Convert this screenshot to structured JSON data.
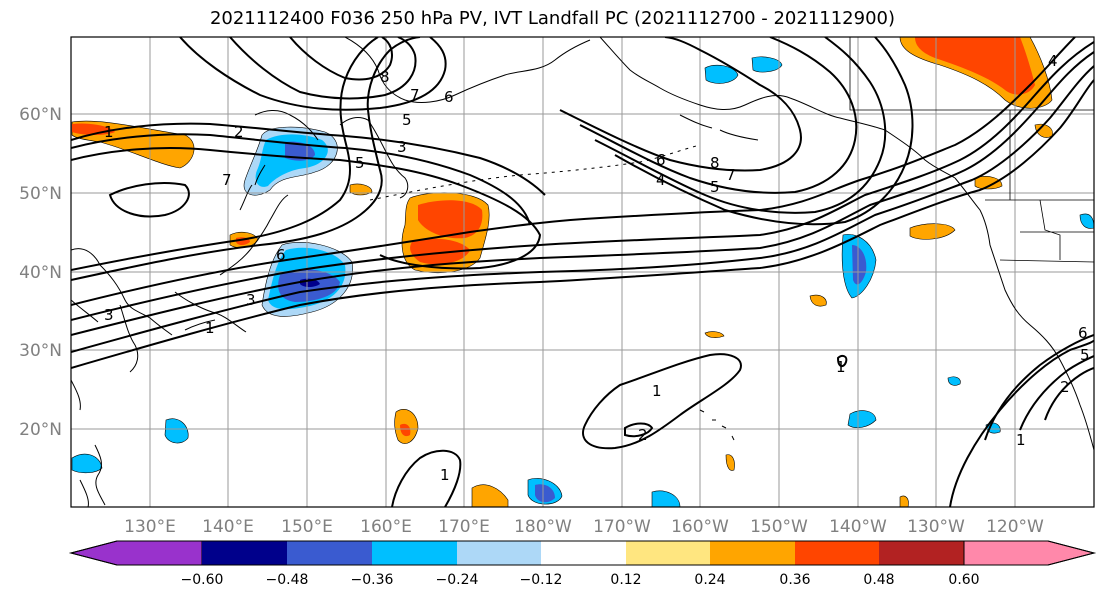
{
  "title": "2021112400 F036 250 hPa PV, IVT Landfall PC (2021112700 - 2021112900)",
  "lat_labels": [
    "60°N",
    "50°N",
    "40°N",
    "30°N",
    "20°N"
  ],
  "lon_labels": [
    "130°E",
    "140°E",
    "150°E",
    "160°E",
    "170°E",
    "180°W",
    "170°W",
    "160°W",
    "150°W",
    "140°W",
    "130°W",
    "120°W"
  ],
  "contour_labels": [
    "1",
    "2",
    "3",
    "4",
    "5",
    "6",
    "7",
    "8"
  ],
  "colorbar": {
    "ticks": [
      "−0.60",
      "−0.48",
      "−0.36",
      "−0.24",
      "−0.12",
      "0.12",
      "0.24",
      "0.36",
      "0.48",
      "0.60"
    ],
    "colors": [
      "#9932cc",
      "#00008b",
      "#3a5bd0",
      "#00bfff",
      "#add8f7",
      "#ffffff",
      "#ffe680",
      "#ffa500",
      "#ff4500",
      "#b22222",
      "#ff88aa"
    ]
  },
  "colors": {
    "positive": [
      "#ffe680",
      "#ffa500",
      "#ff4500"
    ],
    "negative": [
      "#add8f7",
      "#00bfff",
      "#3a5bd0",
      "#00008b"
    ],
    "contour": "#000000",
    "grid": "#9a9a9a"
  }
}
